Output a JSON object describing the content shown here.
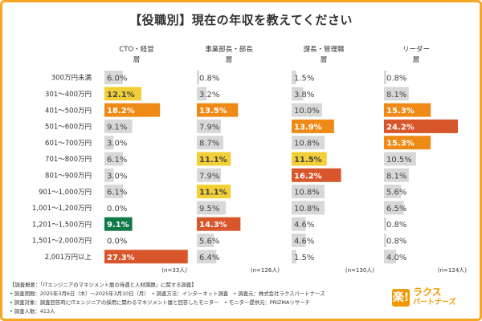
{
  "title": "【役職別】現在の年収を教えてください",
  "colors": {
    "frame": "#f6a623",
    "gray": "#d8d8d8",
    "yellow": "#f2cf36",
    "orange": "#ef8a17",
    "red_orange": "#d8562b",
    "green": "#0e7a48",
    "label_dark": "#444444",
    "label_light": "#ffffff"
  },
  "chart_data": {
    "type": "bar",
    "orientation": "horizontal",
    "title": "【役職別】現在の年収を教えてください",
    "categories": [
      "300万円未満",
      "301～400万円",
      "401～500万円",
      "501～600万円",
      "601～700万円",
      "701～800万円",
      "801～900万円",
      "901～1,000万円",
      "1,001～1,200万円",
      "1,201～1,500万円",
      "1,501～2,000万円",
      "2,001万円以上"
    ],
    "unit": "%",
    "xlim": [
      0,
      30
    ],
    "grid": false,
    "legend": "none",
    "series": [
      {
        "name": "CTO・経営層",
        "n": "(n=33人)",
        "values": [
          6.0,
          12.1,
          18.2,
          9.1,
          3.0,
          6.1,
          3.0,
          6.1,
          0.0,
          9.1,
          0.0,
          27.3
        ],
        "labels": [
          "6.0%",
          "12.1%",
          "18.2%",
          "9.1%",
          "3.0%",
          "6.1%",
          "3.0%",
          "6.1%",
          "0.0%",
          "9.1%",
          "0.0%",
          "27.3%"
        ],
        "colors": [
          "gray",
          "yellow",
          "orange",
          "gray",
          "gray",
          "gray",
          "gray",
          "gray",
          "gray",
          "green",
          "gray",
          "red_orange"
        ]
      },
      {
        "name": "事業部長・部長層",
        "n": "(n=126人)",
        "values": [
          0.8,
          3.2,
          13.5,
          7.9,
          8.7,
          11.1,
          7.9,
          11.1,
          9.5,
          14.3,
          5.6,
          6.4
        ],
        "labels": [
          "0.8%",
          "3.2%",
          "13.5%",
          "7.9%",
          "8.7%",
          "11.1%",
          "7.9%",
          "11.1%",
          "9.5%",
          "14.3%",
          "5.6%",
          "6.4%"
        ],
        "colors": [
          "gray",
          "gray",
          "orange",
          "gray",
          "gray",
          "yellow",
          "gray",
          "yellow",
          "gray",
          "red_orange",
          "gray",
          "gray"
        ]
      },
      {
        "name": "課長・管理職層",
        "n": "(n=130人)",
        "values": [
          1.5,
          3.8,
          10.0,
          13.9,
          10.8,
          11.5,
          16.2,
          10.8,
          10.8,
          4.6,
          4.6,
          1.5
        ],
        "labels": [
          "1.5%",
          "3.8%",
          "10.0%",
          "13.9%",
          "10.8%",
          "11.5%",
          "16.2%",
          "10.8%",
          "10.8%",
          "4.6%",
          "4.6%",
          "1.5%"
        ],
        "colors": [
          "gray",
          "gray",
          "gray",
          "orange",
          "gray",
          "yellow",
          "red_orange",
          "gray",
          "gray",
          "gray",
          "gray",
          "gray"
        ]
      },
      {
        "name": "リーダー層",
        "n": "(n=124人)",
        "values": [
          0.8,
          8.1,
          15.3,
          24.2,
          15.3,
          10.5,
          8.1,
          5.6,
          6.5,
          0.8,
          0.8,
          4.0
        ],
        "labels": [
          "0.8%",
          "8.1%",
          "15.3%",
          "24.2%",
          "15.3%",
          "10.5%",
          "8.1%",
          "5.6%",
          "6.5%",
          "0.8%",
          "0.8%",
          "4.0%"
        ],
        "colors": [
          "gray",
          "gray",
          "orange",
          "red_orange",
          "orange",
          "gray",
          "gray",
          "gray",
          "gray",
          "gray",
          "gray",
          "gray"
        ]
      }
    ]
  },
  "footer": {
    "line1": "【調査概要：「ITエンジニアのマネジメント層の待遇と人材課題」に関する調査】",
    "line2": "• 調査期間：2025年3月6日（木）～2025年3月10日（月）　• 調査方法：インターネット調査　• 調査元：株式会社ラクスパートナーズ",
    "line3": "• 調査対象：調査回答時にITエンジニアの採用に関わるマネジメント層と回答したモニター　• モニター提供元：PRIZMAリサーチ",
    "line4": "• 調査人数：413人"
  },
  "logo": {
    "mark": "楽!",
    "line1": "ラクス",
    "line2": "パートナーズ"
  }
}
